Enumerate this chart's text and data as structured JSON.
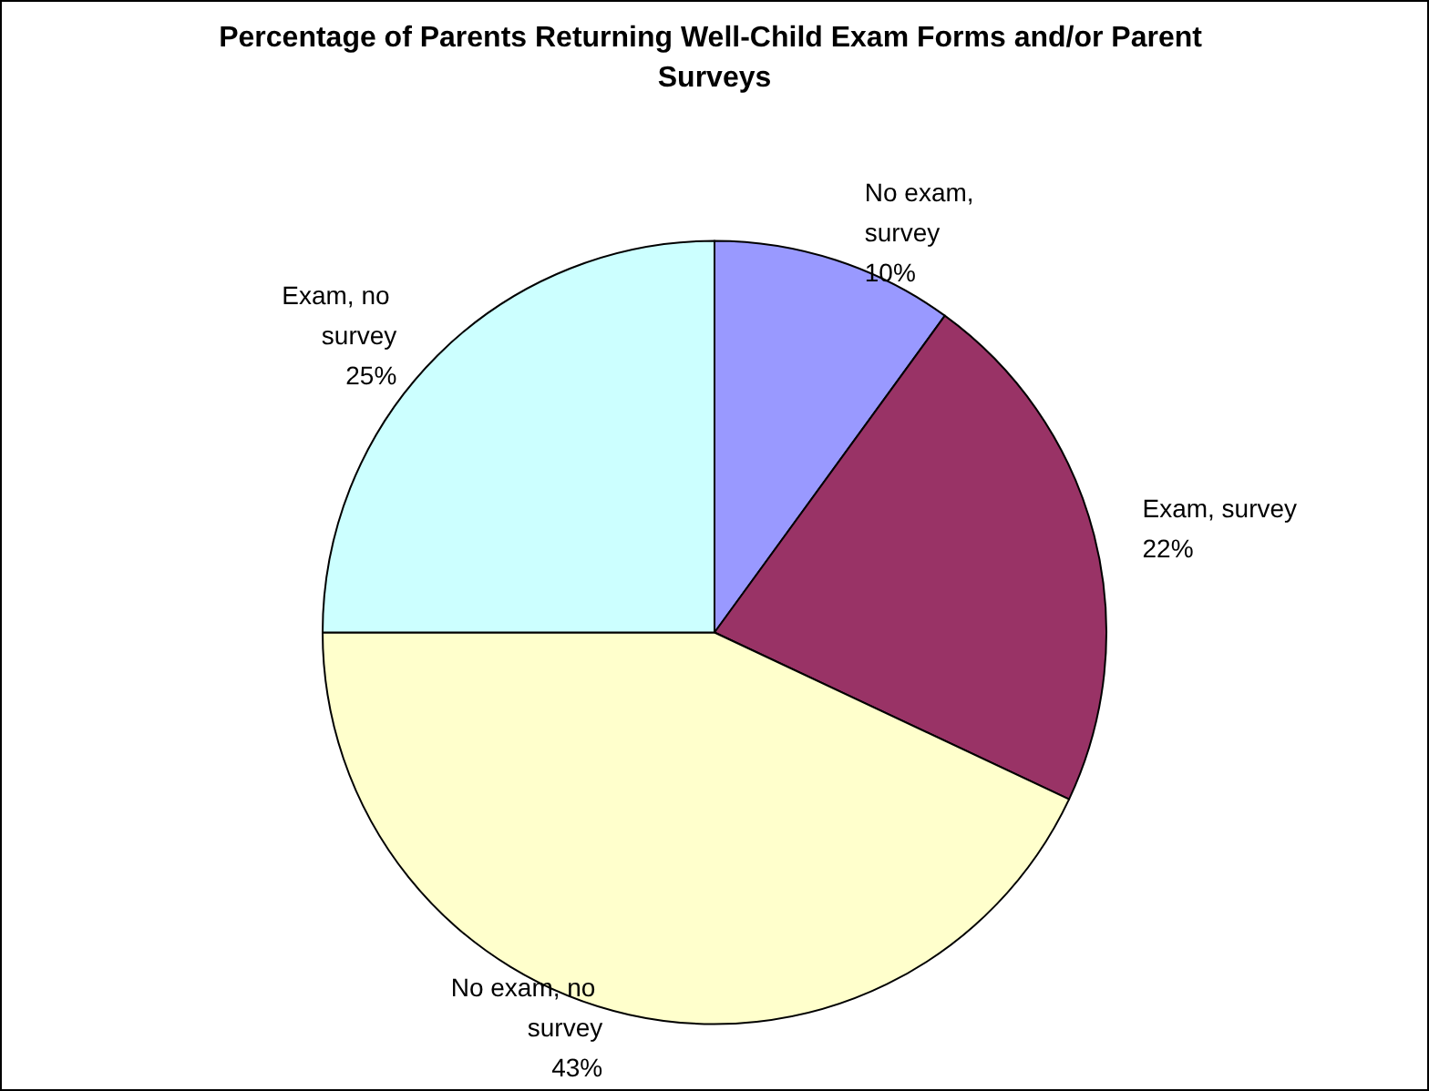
{
  "chart_data": {
    "type": "pie",
    "title": "Percentage of Parents Returning Well-Child Exam Forms and/or Parent Surveys",
    "categories": [
      "No exam, survey",
      "Exam, survey",
      "No exam, no survey",
      "Exam, no survey"
    ],
    "values": [
      10,
      22,
      43,
      25
    ],
    "colors": [
      "#9999ff",
      "#993366",
      "#ffffcc",
      "#ccffff"
    ],
    "value_labels": [
      "10%",
      "22%",
      "43%",
      "25%"
    ],
    "legend": false
  }
}
